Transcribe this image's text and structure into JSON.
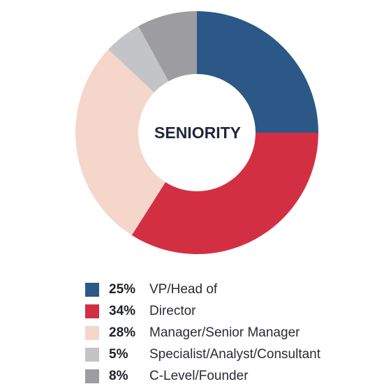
{
  "chart_data": {
    "type": "pie",
    "title": "SENIORITY",
    "categories": [
      "VP/Head of",
      "Director",
      "Manager/Senior Manager",
      "Specialist/Analyst/Consultant",
      "C-Level/Founder"
    ],
    "values": [
      25,
      34,
      28,
      5,
      8
    ],
    "value_labels": [
      "25%",
      "34%",
      "28%",
      "5%",
      "8%"
    ],
    "colors": [
      "#2b5886",
      "#d32f43",
      "#f4d6cb",
      "#c3c4c8",
      "#9c9ca1"
    ],
    "legend": "bottom",
    "style": "donut"
  }
}
